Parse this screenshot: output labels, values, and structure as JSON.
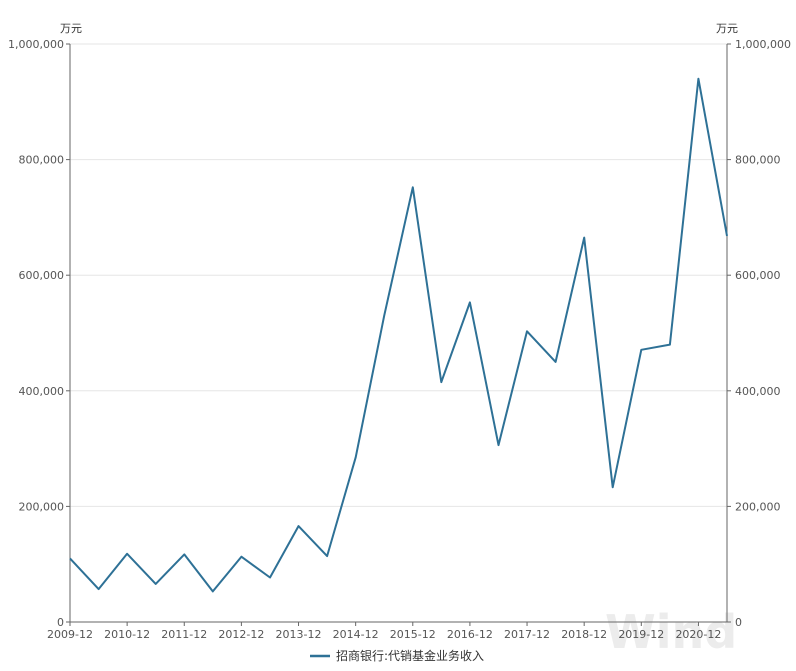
{
  "chart_data": {
    "type": "line",
    "x": [
      "2009-12",
      "2010-06",
      "2010-12",
      "2011-06",
      "2011-12",
      "2012-06",
      "2012-12",
      "2013-06",
      "2013-12",
      "2014-06",
      "2014-12",
      "2015-06",
      "2015-12",
      "2016-06",
      "2016-12",
      "2017-06",
      "2017-12",
      "2018-06",
      "2018-12",
      "2019-06",
      "2019-12",
      "2020-06",
      "2020-12",
      "2021-06"
    ],
    "x_tick_labels": [
      "2009-12",
      "2010-12",
      "2011-12",
      "2012-12",
      "2013-12",
      "2014-12",
      "2015-12",
      "2016-12",
      "2017-12",
      "2018-12",
      "2019-12",
      "2020-12"
    ],
    "series": [
      {
        "name": "招商银行:代销基金业务收入",
        "color": "#2e7196",
        "values": [
          110000,
          57000,
          118000,
          66000,
          117000,
          53000,
          113000,
          77000,
          166000,
          114000,
          285000,
          530000,
          752000,
          415000,
          553000,
          306000,
          503000,
          450000,
          665000,
          233000,
          471000,
          480000,
          940000,
          668000
        ]
      }
    ],
    "ylim": [
      0,
      1000000
    ],
    "y_ticks": [
      0,
      200000,
      400000,
      600000,
      800000,
      1000000
    ],
    "y_tick_labels": [
      "0",
      "200,000",
      "400,000",
      "600,000",
      "800,000",
      "1,000,000"
    ],
    "y_unit_left": "万元",
    "y_unit_right": "万元",
    "grid": true,
    "legend_position": "bottom-center",
    "watermark": "Wind"
  }
}
